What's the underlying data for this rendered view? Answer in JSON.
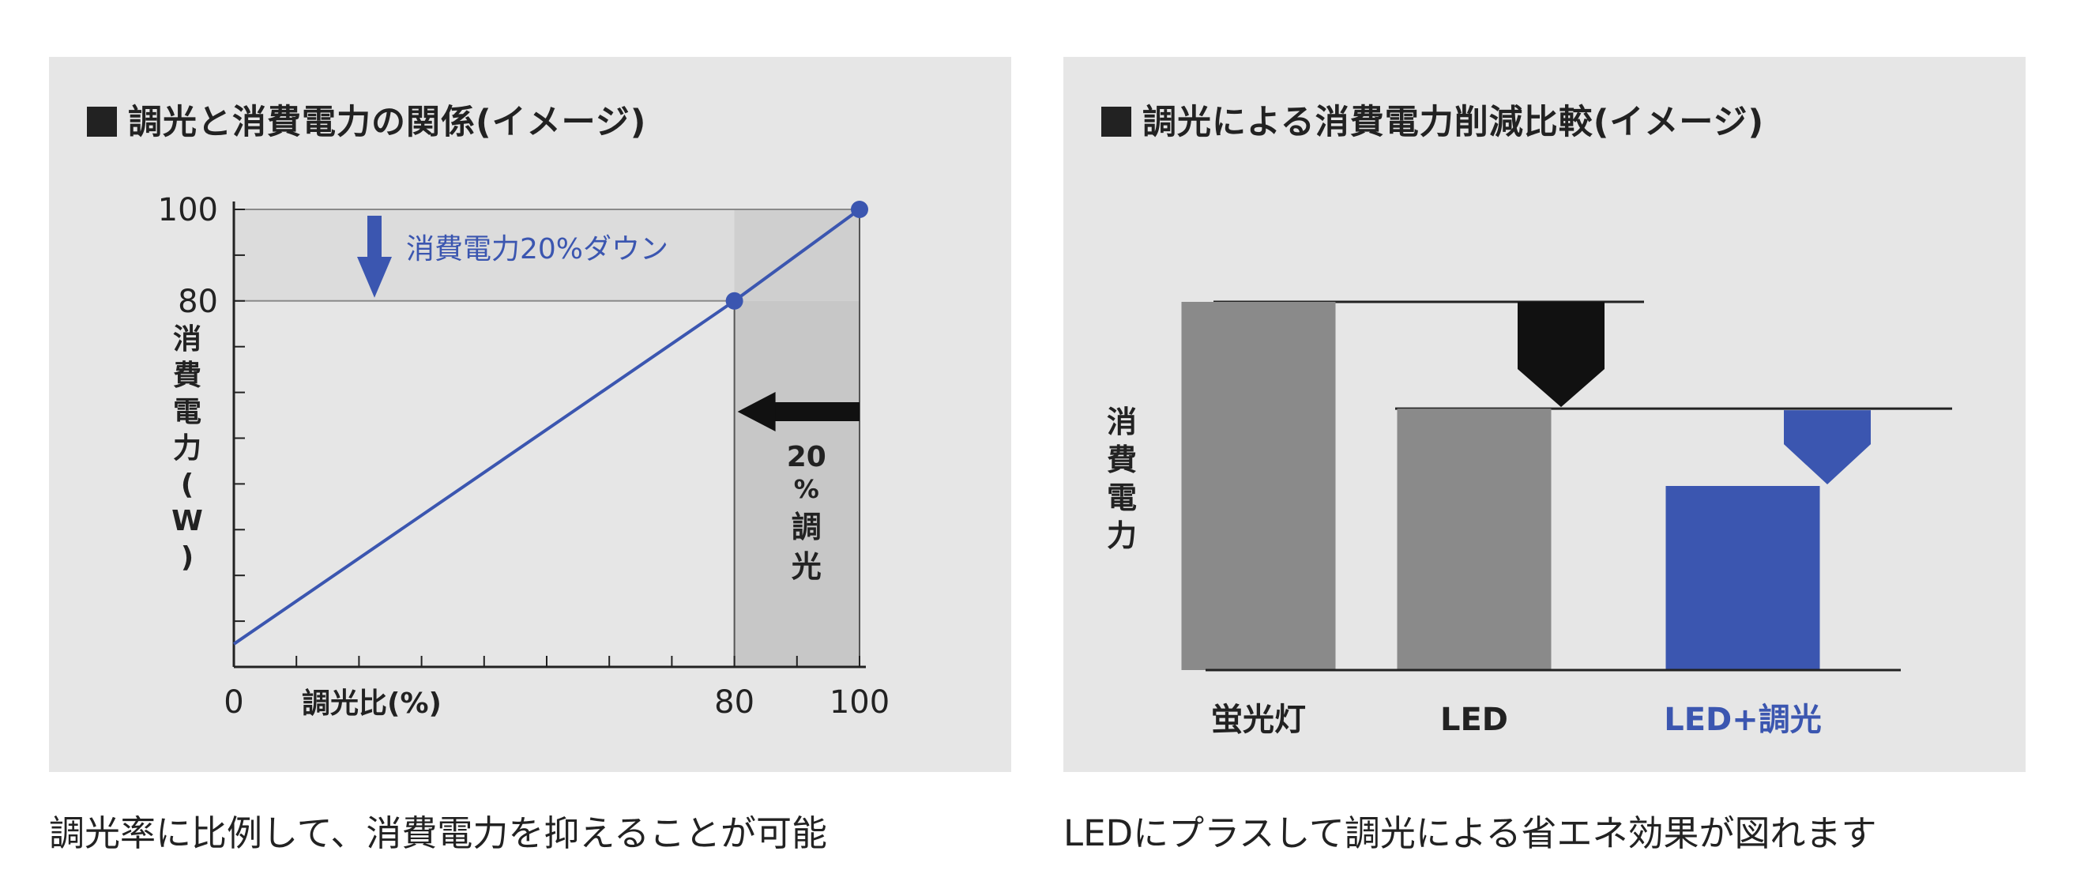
{
  "left_panel": {
    "title": "調光と消費電力の関係(イメージ)",
    "caption": "調光率に比例して、消費電力を抑えることが可能"
  },
  "right_panel": {
    "title": "調光による消費電力削減比較(イメージ)",
    "caption": "LEDにプラスして調光による省エネ効果が図れます"
  },
  "chart_data": [
    {
      "type": "line",
      "title": "調光と消費電力の関係(イメージ)",
      "xlabel": "調光比(%)",
      "ylabel": "消費電力(W)",
      "xlim": [
        0,
        100
      ],
      "ylim": [
        0,
        100
      ],
      "x_ticks": [
        "0",
        "80",
        "100"
      ],
      "y_ticks": [
        "80",
        "100"
      ],
      "series": [
        {
          "x": [
            0,
            80,
            100
          ],
          "y": [
            5,
            80,
            100
          ]
        }
      ],
      "annotations": {
        "power_down": "消費電力20%ダウン",
        "dimming_20_pct": "20",
        "dimming_20_sym": "%",
        "dimming_20_word": "調光"
      },
      "colors": {
        "line": "#3b56b0",
        "arrow": "#3b56b0",
        "black_arrow": "#111111"
      }
    },
    {
      "type": "bar",
      "title": "調光による消費電力削減比較(イメージ)",
      "ylabel": "消費電力",
      "categories": [
        "蛍光灯",
        "LED",
        "LED+調光"
      ],
      "values": [
        100,
        71,
        50
      ],
      "colors": [
        "#8a8a8a",
        "#8a8a8a",
        "#3b56b0"
      ],
      "label_colors": [
        "#222222",
        "#222222",
        "#3b56b0"
      ]
    }
  ]
}
